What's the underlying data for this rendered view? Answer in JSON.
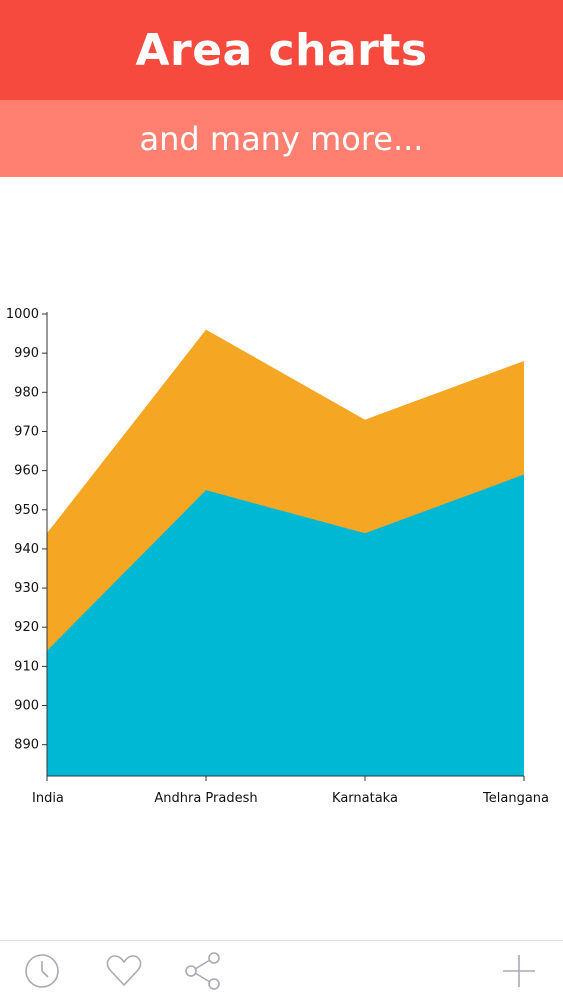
{
  "header": {
    "title": "Area charts",
    "subtitle": "and many more..."
  },
  "colors": {
    "header_top": "#f64a3f",
    "header_sub": "#ff8070",
    "series_1": "#01b8d4",
    "series_2": "#f5a623",
    "icon": "#a9a9b5"
  },
  "chart_data": {
    "type": "area",
    "stacked": false,
    "categories": [
      "India",
      "Andhra Pradesh",
      "Karnataka",
      "Telangana"
    ],
    "series": [
      {
        "values": [
          914,
          955,
          944,
          959
        ]
      },
      {
        "values": [
          944,
          996,
          973,
          988
        ]
      }
    ],
    "y_ticks": [
      890,
      900,
      910,
      920,
      930,
      940,
      950,
      960,
      970,
      980,
      990,
      1000
    ],
    "ylim": [
      882,
      1000
    ],
    "title": "",
    "xlabel": "",
    "ylabel": "",
    "grid": false,
    "legend": "none"
  },
  "bottom_bar": {
    "icons": [
      "clock-icon",
      "heart-icon",
      "share-icon",
      "plus-icon"
    ]
  }
}
